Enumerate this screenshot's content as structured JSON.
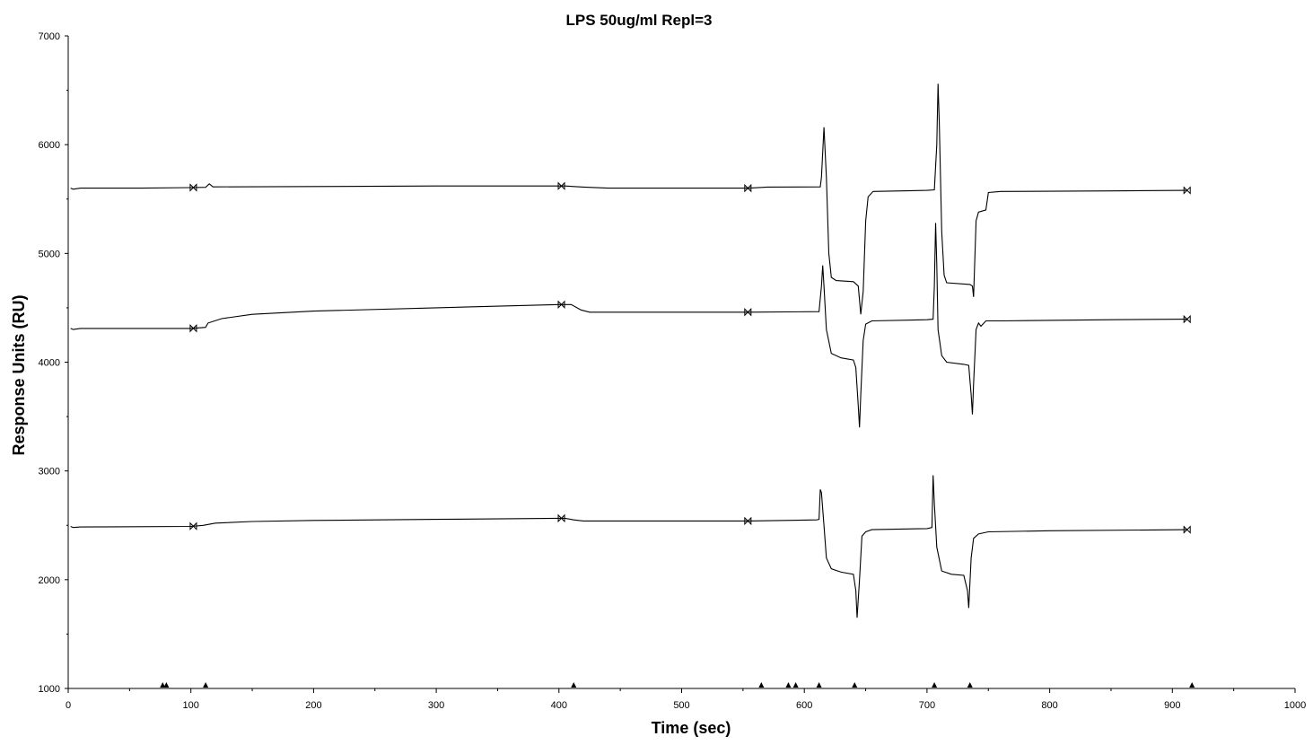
{
  "chart_data": {
    "type": "line",
    "title": "LPS 50ug/ml Repl=3",
    "xlabel": "Time (sec)",
    "ylabel": "Response Units (RU)",
    "xlim": [
      0,
      1000
    ],
    "ylim": [
      1000,
      7000
    ],
    "x_ticks": [
      0,
      100,
      200,
      300,
      400,
      500,
      600,
      700,
      800,
      900,
      1000
    ],
    "y_ticks": [
      1000,
      2000,
      3000,
      4000,
      5000,
      6000,
      7000
    ],
    "legend": "none",
    "grid": false,
    "series": [
      {
        "points": [
          [
            2,
            5600
          ],
          [
            4,
            5590
          ],
          [
            10,
            5600
          ],
          [
            60,
            5600
          ],
          [
            100,
            5605
          ],
          [
            112,
            5608
          ],
          [
            115,
            5640
          ],
          [
            118,
            5612
          ],
          [
            200,
            5615
          ],
          [
            300,
            5620
          ],
          [
            400,
            5620
          ],
          [
            405,
            5620
          ],
          [
            420,
            5610
          ],
          [
            440,
            5600
          ],
          [
            500,
            5600
          ],
          [
            555,
            5600
          ],
          [
            570,
            5610
          ],
          [
            613,
            5612
          ],
          [
            614,
            5700
          ],
          [
            616,
            6160
          ],
          [
            618,
            5700
          ],
          [
            620,
            5000
          ],
          [
            622,
            4780
          ],
          [
            626,
            4750
          ],
          [
            640,
            4740
          ],
          [
            644,
            4700
          ],
          [
            646,
            4440
          ],
          [
            648,
            4650
          ],
          [
            650,
            5300
          ],
          [
            652,
            5520
          ],
          [
            656,
            5570
          ],
          [
            700,
            5580
          ],
          [
            706,
            5585
          ],
          [
            708,
            6000
          ],
          [
            709,
            6560
          ],
          [
            710,
            6200
          ],
          [
            712,
            5200
          ],
          [
            714,
            4800
          ],
          [
            716,
            4730
          ],
          [
            735,
            4715
          ],
          [
            737,
            4700
          ],
          [
            738,
            4600
          ],
          [
            740,
            5300
          ],
          [
            742,
            5380
          ],
          [
            748,
            5400
          ],
          [
            750,
            5560
          ],
          [
            760,
            5570
          ],
          [
            850,
            5575
          ],
          [
            912,
            5580
          ]
        ],
        "markers": [
          102,
          402,
          554,
          912
        ]
      },
      {
        "points": [
          [
            2,
            4310
          ],
          [
            4,
            4300
          ],
          [
            10,
            4310
          ],
          [
            100,
            4310
          ],
          [
            112,
            4320
          ],
          [
            114,
            4360
          ],
          [
            125,
            4400
          ],
          [
            150,
            4440
          ],
          [
            200,
            4470
          ],
          [
            300,
            4500
          ],
          [
            400,
            4530
          ],
          [
            410,
            4530
          ],
          [
            418,
            4480
          ],
          [
            425,
            4460
          ],
          [
            500,
            4460
          ],
          [
            555,
            4460
          ],
          [
            612,
            4465
          ],
          [
            614,
            4700
          ],
          [
            615,
            4890
          ],
          [
            616,
            4700
          ],
          [
            618,
            4300
          ],
          [
            622,
            4080
          ],
          [
            630,
            4040
          ],
          [
            640,
            4020
          ],
          [
            642,
            3950
          ],
          [
            644,
            3600
          ],
          [
            645,
            3400
          ],
          [
            646,
            3700
          ],
          [
            648,
            4200
          ],
          [
            650,
            4350
          ],
          [
            655,
            4380
          ],
          [
            700,
            4390
          ],
          [
            705,
            4395
          ],
          [
            706,
            4700
          ],
          [
            707,
            5280
          ],
          [
            708,
            4900
          ],
          [
            709,
            4300
          ],
          [
            712,
            4060
          ],
          [
            716,
            4000
          ],
          [
            730,
            3980
          ],
          [
            734,
            3970
          ],
          [
            736,
            3700
          ],
          [
            737,
            3520
          ],
          [
            738,
            3800
          ],
          [
            740,
            4300
          ],
          [
            742,
            4360
          ],
          [
            744,
            4330
          ],
          [
            748,
            4380
          ],
          [
            760,
            4380
          ],
          [
            850,
            4390
          ],
          [
            912,
            4395
          ]
        ],
        "markers": [
          102,
          402,
          554,
          912
        ]
      },
      {
        "points": [
          [
            2,
            2490
          ],
          [
            4,
            2480
          ],
          [
            10,
            2485
          ],
          [
            100,
            2490
          ],
          [
            110,
            2500
          ],
          [
            120,
            2520
          ],
          [
            150,
            2535
          ],
          [
            200,
            2545
          ],
          [
            300,
            2555
          ],
          [
            400,
            2565
          ],
          [
            405,
            2565
          ],
          [
            412,
            2550
          ],
          [
            420,
            2540
          ],
          [
            500,
            2540
          ],
          [
            555,
            2540
          ],
          [
            610,
            2550
          ],
          [
            612,
            2555
          ],
          [
            613,
            2830
          ],
          [
            614,
            2800
          ],
          [
            616,
            2500
          ],
          [
            618,
            2200
          ],
          [
            622,
            2100
          ],
          [
            630,
            2070
          ],
          [
            640,
            2050
          ],
          [
            642,
            1900
          ],
          [
            643,
            1650
          ],
          [
            645,
            2000
          ],
          [
            647,
            2400
          ],
          [
            650,
            2440
          ],
          [
            655,
            2460
          ],
          [
            700,
            2470
          ],
          [
            704,
            2480
          ],
          [
            705,
            2960
          ],
          [
            706,
            2700
          ],
          [
            708,
            2300
          ],
          [
            712,
            2080
          ],
          [
            720,
            2050
          ],
          [
            730,
            2040
          ],
          [
            733,
            1900
          ],
          [
            734,
            1740
          ],
          [
            736,
            2200
          ],
          [
            738,
            2380
          ],
          [
            742,
            2420
          ],
          [
            750,
            2440
          ],
          [
            800,
            2450
          ],
          [
            912,
            2460
          ]
        ],
        "markers": [
          102,
          402,
          554,
          912
        ]
      }
    ],
    "injection_marks": [
      77,
      80,
      112,
      412,
      565,
      587,
      593,
      612,
      641,
      706,
      735,
      916
    ]
  }
}
